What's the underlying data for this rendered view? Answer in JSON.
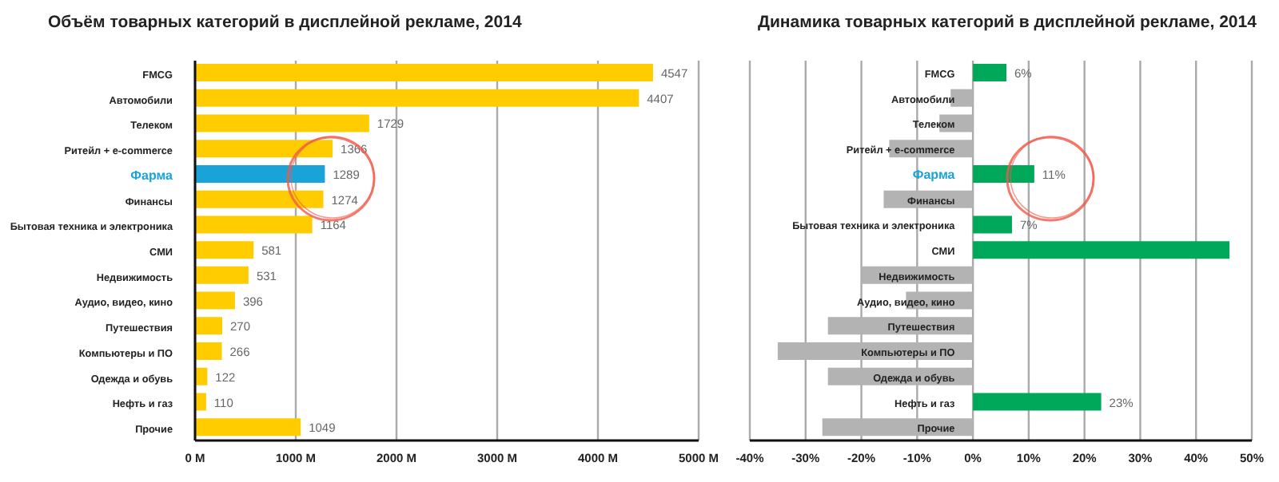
{
  "chart_data": [
    {
      "type": "bar",
      "orientation": "horizontal",
      "title": "Объём товарных категорий в дисплейной рекламе, 2014",
      "categories": [
        "FMCG",
        "Автомобили",
        "Телеком",
        "Ритейл + e-commerce",
        "Фарма",
        "Финансы",
        "Бытовая техника и электроника",
        "СМИ",
        "Недвижимость",
        "Аудио, видео, кино",
        "Путешествия",
        "Компьютеры и ПО",
        "Одежда и обувь",
        "Нефть и газ",
        "Прочие"
      ],
      "values": [
        4547,
        4407,
        1729,
        1366,
        1289,
        1274,
        1164,
        581,
        531,
        396,
        270,
        266,
        122,
        110,
        1049
      ],
      "colors": [
        "#ffcc00",
        "#ffcc00",
        "#ffcc00",
        "#ffcc00",
        "#1aa3d9",
        "#ffcc00",
        "#ffcc00",
        "#ffcc00",
        "#ffcc00",
        "#ffcc00",
        "#ffcc00",
        "#ffcc00",
        "#ffcc00",
        "#ffcc00",
        "#ffcc00"
      ],
      "data_labels": true,
      "xlim": [
        0,
        5000
      ],
      "xticks": [
        {
          "value": 0,
          "label": "0 M"
        },
        {
          "value": 1000,
          "label": "1000 M"
        },
        {
          "value": 2000,
          "label": "2000 M"
        },
        {
          "value": 3000,
          "label": "3000 M"
        },
        {
          "value": 4000,
          "label": "4000 M"
        },
        {
          "value": 5000,
          "label": "5000 M"
        }
      ],
      "grid": "x"
    },
    {
      "type": "bar",
      "orientation": "horizontal",
      "title": "Динамика товарных категорий в дисплейной рекламе, 2014",
      "categories": [
        "FMCG",
        "Автомобили",
        "Телеком",
        "Ритейл + e-commerce",
        "Фарма",
        "Финансы",
        "Бытовая техника и электроника",
        "СМИ",
        "Недвижимость",
        "Аудио, видео, кино",
        "Путешествия",
        "Компьютеры и ПО",
        "Одежда и обувь",
        "Нефть и газ",
        "Прочие"
      ],
      "values": [
        6,
        -4,
        -6,
        -15,
        11,
        -16,
        7,
        46,
        -20,
        -12,
        -26,
        -35,
        -26,
        23,
        -27
      ],
      "colors": [
        "#00a85a",
        "#b3b3b3",
        "#b3b3b3",
        "#b3b3b3",
        "#00a85a",
        "#b3b3b3",
        "#00a85a",
        "#00a85a",
        "#b3b3b3",
        "#b3b3b3",
        "#b3b3b3",
        "#b3b3b3",
        "#b3b3b3",
        "#00a85a",
        "#b3b3b3"
      ],
      "value_labels": [
        "6%",
        null,
        null,
        null,
        "11%",
        null,
        "7%",
        null,
        null,
        null,
        null,
        null,
        null,
        "23%",
        null
      ],
      "xlim": [
        -40,
        50
      ],
      "xticks": [
        {
          "value": -40,
          "label": "-40%"
        },
        {
          "value": -30,
          "label": "-30%"
        },
        {
          "value": -20,
          "label": "-20%"
        },
        {
          "value": -10,
          "label": "-10%"
        },
        {
          "value": 0,
          "label": "0%"
        },
        {
          "value": 10,
          "label": "10%"
        },
        {
          "value": 20,
          "label": "20%"
        },
        {
          "value": 30,
          "label": "30%"
        },
        {
          "value": 40,
          "label": "40%"
        },
        {
          "value": 50,
          "label": "50%"
        }
      ],
      "grid": "x"
    }
  ]
}
